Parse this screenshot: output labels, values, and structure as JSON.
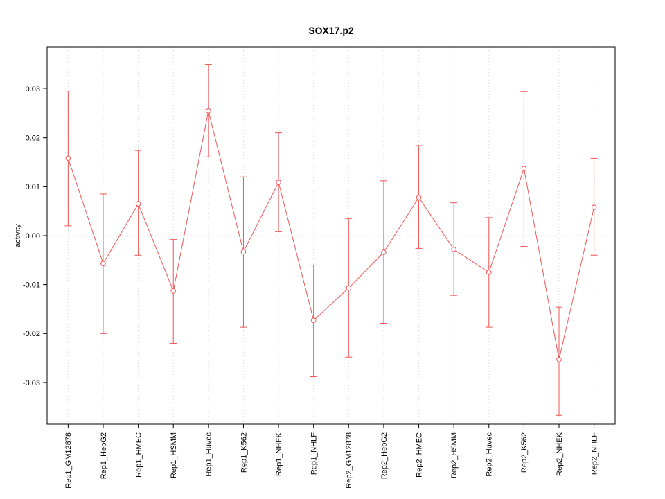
{
  "chart_data": {
    "type": "line",
    "title": "SOX17.p2",
    "xlabel": "",
    "ylabel": "activity",
    "ylim": [
      -0.0385,
      0.0385
    ],
    "yticks": [
      -0.03,
      -0.02,
      -0.01,
      0,
      0.01,
      0.02,
      0.03
    ],
    "categories": [
      "Rep1_GM12878",
      "Rep1_HepG2",
      "Rep1_HMEC",
      "Rep1_HSMM",
      "Rep1_Huvec",
      "Rep1_K562",
      "Rep1_NHEK",
      "Rep1_NHLF",
      "Rep2_GM12878",
      "Rep2_HepG2",
      "Rep2_HMEC",
      "Rep2_HSMM",
      "Rep2_Huvec",
      "Rep2_K562",
      "Rep2_NHEK",
      "Rep2_NHLF"
    ],
    "series": [
      {
        "name": "activity",
        "color": "#f05454",
        "marker": "open-circle",
        "values": [
          0.0158,
          -0.0057,
          0.0065,
          -0.0113,
          0.0255,
          -0.0033,
          0.0109,
          -0.0173,
          -0.0107,
          -0.0034,
          0.0078,
          -0.0028,
          -0.0075,
          0.0137,
          -0.0253,
          0.0058
        ],
        "ci_lower": [
          0.002,
          -0.02,
          -0.004,
          -0.022,
          0.0161,
          -0.0187,
          0.0008,
          -0.0288,
          -0.0248,
          -0.0179,
          -0.0026,
          -0.0122,
          -0.0187,
          -0.0022,
          -0.0367,
          -0.004
        ],
        "ci_upper": [
          0.0295,
          0.0085,
          0.0174,
          -0.0008,
          0.0349,
          0.012,
          0.021,
          -0.006,
          0.0035,
          0.0112,
          0.0184,
          0.0067,
          0.0037,
          0.0294,
          -0.0146,
          0.0158
        ]
      }
    ],
    "grid": {
      "vertical_gridlines": true,
      "zero_line": true,
      "line_style": "dotted",
      "color": "#d6d6d6"
    },
    "legend": "none"
  }
}
